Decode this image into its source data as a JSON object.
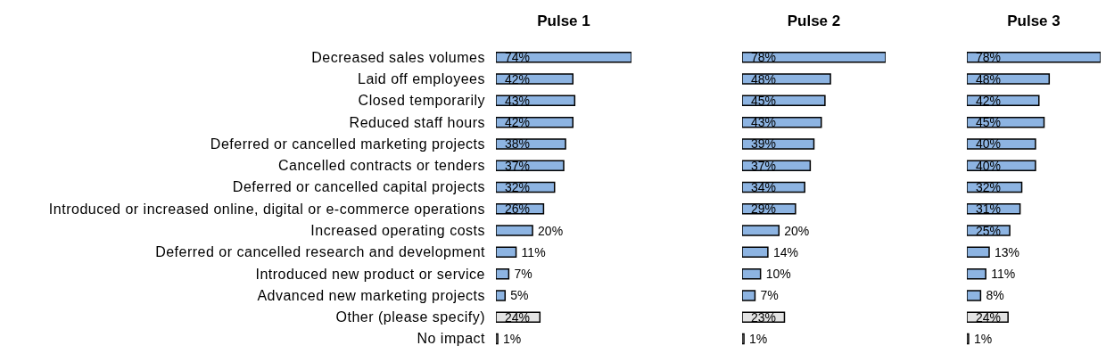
{
  "chart_data": [
    {
      "type": "bar",
      "orientation": "horizontal",
      "title": "Pulse 1",
      "categories": [
        "Decreased sales volumes",
        "Laid off employees",
        "Closed temporarily",
        "Reduced staff hours",
        "Deferred or cancelled marketing projects",
        "Cancelled contracts or tenders",
        "Deferred or cancelled capital projects",
        "Introduced or increased online, digital or e-commerce operations",
        "Increased operating costs",
        "Deferred or cancelled research and development",
        "Introduced new product or service",
        "Advanced new marketing projects",
        "Other (please specify)",
        "No impact"
      ],
      "values": [
        74,
        42,
        43,
        42,
        38,
        37,
        32,
        26,
        20,
        11,
        7,
        5,
        24,
        1
      ],
      "value_labels": [
        "74%",
        "42%",
        "43%",
        "42%",
        "38%",
        "37%",
        "32%",
        "26%",
        "20%",
        "11%",
        "7%",
        "5%",
        "24%",
        "1%"
      ],
      "colors": [
        "#8db4e2",
        "#8db4e2",
        "#8db4e2",
        "#8db4e2",
        "#8db4e2",
        "#8db4e2",
        "#8db4e2",
        "#8db4e2",
        "#8db4e2",
        "#8db4e2",
        "#8db4e2",
        "#8db4e2",
        "#e3e3e3",
        "#e3e3e3"
      ]
    },
    {
      "type": "bar",
      "orientation": "horizontal",
      "title": "Pulse 2",
      "categories": [
        null,
        null,
        null,
        null,
        null,
        null,
        null,
        null,
        null,
        null,
        null,
        null,
        null,
        null
      ],
      "values": [
        78,
        48,
        45,
        43,
        39,
        37,
        34,
        29,
        20,
        14,
        10,
        7,
        23,
        1
      ],
      "value_labels": [
        "78%",
        "48%",
        "45%",
        "43%",
        "39%",
        "37%",
        "34%",
        "29%",
        "20%",
        "14%",
        "10%",
        "7%",
        "23%",
        "1%"
      ],
      "colors": [
        "#8db4e2",
        "#8db4e2",
        "#8db4e2",
        "#8db4e2",
        "#8db4e2",
        "#8db4e2",
        "#8db4e2",
        "#8db4e2",
        "#8db4e2",
        "#8db4e2",
        "#8db4e2",
        "#8db4e2",
        "#e3e3e3",
        "#e3e3e3"
      ]
    },
    {
      "type": "bar",
      "orientation": "horizontal",
      "title": "Pulse 3",
      "categories": [
        null,
        null,
        null,
        null,
        null,
        null,
        null,
        null,
        null,
        null,
        null,
        null,
        null,
        null
      ],
      "values": [
        78,
        48,
        42,
        45,
        40,
        40,
        32,
        31,
        25,
        13,
        11,
        8,
        24,
        1
      ],
      "value_labels": [
        "78%",
        "48%",
        "42%",
        "45%",
        "40%",
        "40%",
        "32%",
        "31%",
        "25%",
        "13%",
        "11%",
        "8%",
        "24%",
        "1%"
      ],
      "colors": [
        "#8db4e2",
        "#8db4e2",
        "#8db4e2",
        "#8db4e2",
        "#8db4e2",
        "#8db4e2",
        "#8db4e2",
        "#8db4e2",
        "#8db4e2",
        "#8db4e2",
        "#8db4e2",
        "#8db4e2",
        "#e3e3e3",
        "#e3e3e3"
      ]
    }
  ]
}
